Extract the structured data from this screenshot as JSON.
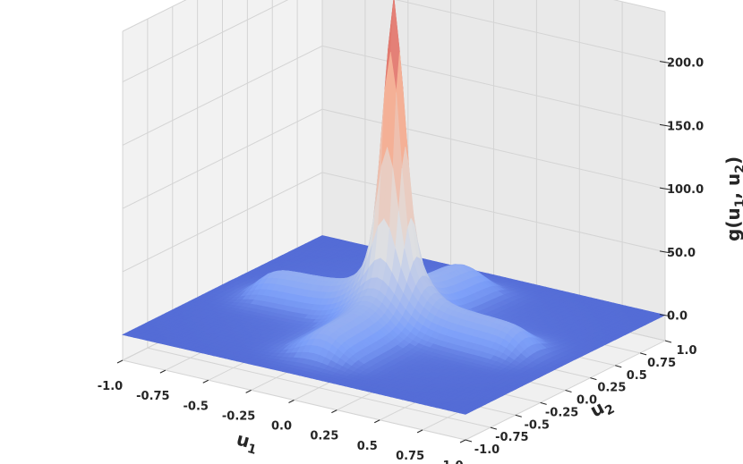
{
  "chart_data": {
    "type": "surface3d",
    "colormap": "coolwarm",
    "x_ticks": [
      "-1.0",
      "-0.75",
      "-0.5",
      "-0.25",
      "0.0",
      "0.25",
      "0.5",
      "0.75",
      "1.0"
    ],
    "y_ticks": [
      "-1.0",
      "-0.75",
      "-0.5",
      "-0.25",
      "0.0",
      "0.25",
      "0.5",
      "0.75",
      "1.0"
    ],
    "z_ticks": [
      "0.0",
      "50.0",
      "100.0",
      "150.0",
      "200.0"
    ],
    "x_label": {
      "main": "u",
      "sub": "1"
    },
    "y_label": {
      "main": "u",
      "sub": "2"
    },
    "z_label": {
      "prefix": "g(u",
      "sub1": "1",
      "mid": ", u",
      "sub2": "2",
      "suffix": ")"
    },
    "xlim": [
      -1.0,
      1.0
    ],
    "ylim": [
      -1.0,
      1.0
    ],
    "zlim": [
      -20,
      240
    ],
    "peak": {
      "u1": 0.0,
      "u2": 0.0,
      "g": 215
    },
    "plateau_value": 0,
    "grid": true
  }
}
